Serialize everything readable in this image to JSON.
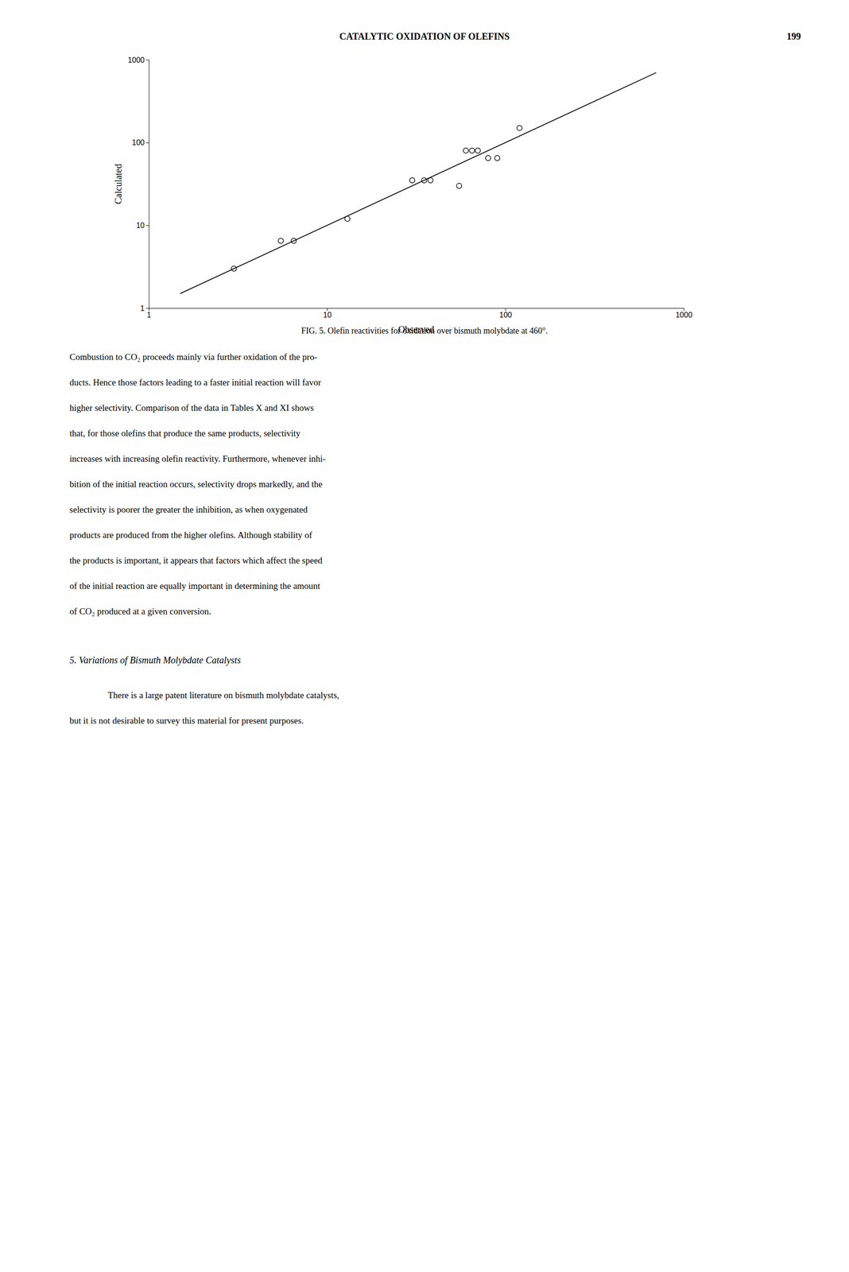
{
  "chart_data": {
    "type": "scatter",
    "caption": "FIG. 5. Olefin reactivities for oxidation over bismuth molybdate at 460°.",
    "xlabel": "Observed",
    "ylabel": "Calculated",
    "log": true,
    "grid": false,
    "xlim": [
      1,
      1000
    ],
    "ylim": [
      1,
      1000
    ],
    "xticks": [
      1,
      10,
      100,
      1000
    ],
    "yticks": [
      1,
      10,
      100,
      1000
    ],
    "series": [
      {
        "type": "scatter",
        "marker": "circle",
        "color": "#000000",
        "x": [
          3.0,
          5.5,
          6.5,
          13.0,
          30.0,
          35.0,
          38.0,
          55.0,
          60.0,
          65.0,
          70.0,
          80.0,
          90.0,
          120.0
        ],
        "values": [
          3.0,
          6.5,
          6.5,
          12.0,
          35.0,
          35.0,
          35.0,
          30.0,
          80.0,
          80.0,
          80.0,
          65.0,
          65.0,
          150.0
        ]
      },
      {
        "type": "line",
        "line_style": "solid",
        "color": "#000000",
        "x": [
          1.5,
          700
        ],
        "values": [
          1.5,
          700
        ]
      }
    ]
  },
  "header_text": "CATALYTIC OXIDATION OF OLEFINS",
  "page_number": "199",
  "body_paragraph1": [
    "Combustion to CO₂ proceeds mainly via further oxidation of the pro-",
    "ducts. Hence those factors leading to a faster initial reaction will favor",
    "higher selectivity. Comparison of the data in Tables X and XI shows",
    "that, for those olefins that produce the same products, selectivity",
    "increases with increasing olefin reactivity. Furthermore, whenever inhi-",
    "bition of the initial reaction occurs, selectivity drops markedly, and the",
    "selectivity is poorer the greater the inhibition, as when oxygenated",
    "products are produced from the higher olefins. Although stability of",
    "the products is important, it appears that factors which affect the speed",
    "of the initial reaction are equally important in determining the amount",
    "of CO₂ produced at a given conversion."
  ],
  "section_heading": "5. Variations of Bismuth Molybdate Catalysts",
  "section_body": [
    "There is a large patent literature on bismuth molybdate catalysts,",
    "but it is not desirable to survey this material for present purposes."
  ]
}
